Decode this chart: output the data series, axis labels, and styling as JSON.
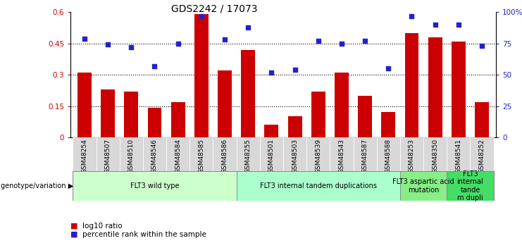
{
  "title": "GDS2242 / 17073",
  "samples": [
    "GSM48254",
    "GSM48507",
    "GSM48510",
    "GSM48546",
    "GSM48584",
    "GSM48585",
    "GSM48586",
    "GSM48255",
    "GSM48501",
    "GSM48503",
    "GSM48539",
    "GSM48543",
    "GSM48587",
    "GSM48588",
    "GSM48253",
    "GSM48350",
    "GSM48541",
    "GSM48252"
  ],
  "log10_ratio": [
    0.31,
    0.23,
    0.22,
    0.14,
    0.17,
    0.59,
    0.32,
    0.42,
    0.06,
    0.1,
    0.22,
    0.31,
    0.2,
    0.12,
    0.5,
    0.48,
    0.46,
    0.17
  ],
  "percentile_rank": [
    79,
    74,
    72,
    57,
    75,
    97,
    78,
    88,
    52,
    54,
    77,
    75,
    77,
    55,
    97,
    90,
    90,
    73
  ],
  "groups": [
    {
      "label": "FLT3 wild type",
      "start": 0,
      "end": 7,
      "color": "#ccffcc"
    },
    {
      "label": "FLT3 internal tandem duplications",
      "start": 7,
      "end": 14,
      "color": "#aaffcc"
    },
    {
      "label": "FLT3 aspartic acid\nmutation",
      "start": 14,
      "end": 16,
      "color": "#88ee88"
    },
    {
      "label": "FLT3\ninternal\ntande\nm dupli",
      "start": 16,
      "end": 18,
      "color": "#44dd66"
    }
  ],
  "bar_color": "#cc0000",
  "dot_color": "#2222cc",
  "ylim_left": [
    0,
    0.6
  ],
  "ylim_right": [
    0,
    100
  ],
  "yticks_left": [
    0,
    0.15,
    0.3,
    0.45,
    0.6
  ],
  "yticks_right": [
    0,
    25,
    50,
    75,
    100
  ],
  "ytick_labels_left": [
    "0",
    "0.15",
    "0.3",
    "0.45",
    "0.6"
  ],
  "ytick_labels_right": [
    "0",
    "25",
    "50",
    "75",
    "100%"
  ],
  "hlines": [
    0.15,
    0.3,
    0.45
  ],
  "legend_items": [
    {
      "label": "log10 ratio",
      "color": "#cc0000"
    },
    {
      "label": "percentile rank within the sample",
      "color": "#2222cc"
    }
  ],
  "genotype_label": "genotype/variation",
  "tick_bg_color": "#d8d8d8",
  "background_color": "#ffffff"
}
